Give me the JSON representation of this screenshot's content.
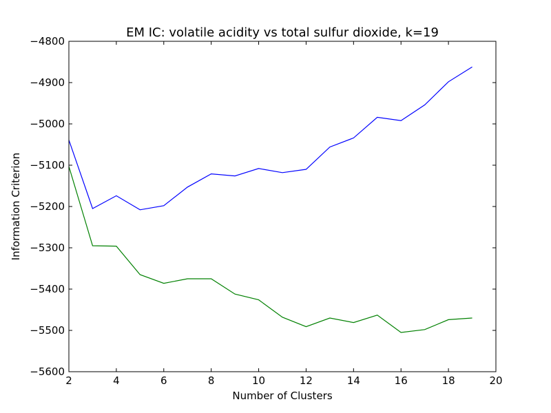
{
  "chart_data": {
    "type": "line",
    "title": "EM IC: volatile acidity vs total sulfur dioxide, k=19",
    "xlabel": "Number of Clusters",
    "ylabel": "Information Criterion",
    "xlim": [
      2,
      20
    ],
    "ylim": [
      -5600,
      -4800
    ],
    "xticks": [
      2,
      4,
      6,
      8,
      10,
      12,
      14,
      16,
      18,
      20
    ],
    "yticks": [
      -5600,
      -5500,
      -5400,
      -5300,
      -5200,
      -5100,
      -5000,
      -4900,
      -4800
    ],
    "x": [
      2,
      3,
      4,
      5,
      6,
      7,
      8,
      9,
      10,
      11,
      12,
      13,
      14,
      15,
      16,
      17,
      18,
      19
    ],
    "series": [
      {
        "color": "#0000ff",
        "values": [
          -5039,
          -5205,
          -5174,
          -5208,
          -5198,
          -5153,
          -5121,
          -5126,
          -5108,
          -5118,
          -5110,
          -5056,
          -5034,
          -4984,
          -4992,
          -4954,
          -4898,
          -4862
        ]
      },
      {
        "color": "#008000",
        "values": [
          -5103,
          -5295,
          -5296,
          -5365,
          -5386,
          -5375,
          -5375,
          -5412,
          -5426,
          -5468,
          -5491,
          -5470,
          -5481,
          -5463,
          -5505,
          -5498,
          -5474,
          -5470
        ]
      }
    ],
    "grid": false,
    "legend": "none"
  }
}
